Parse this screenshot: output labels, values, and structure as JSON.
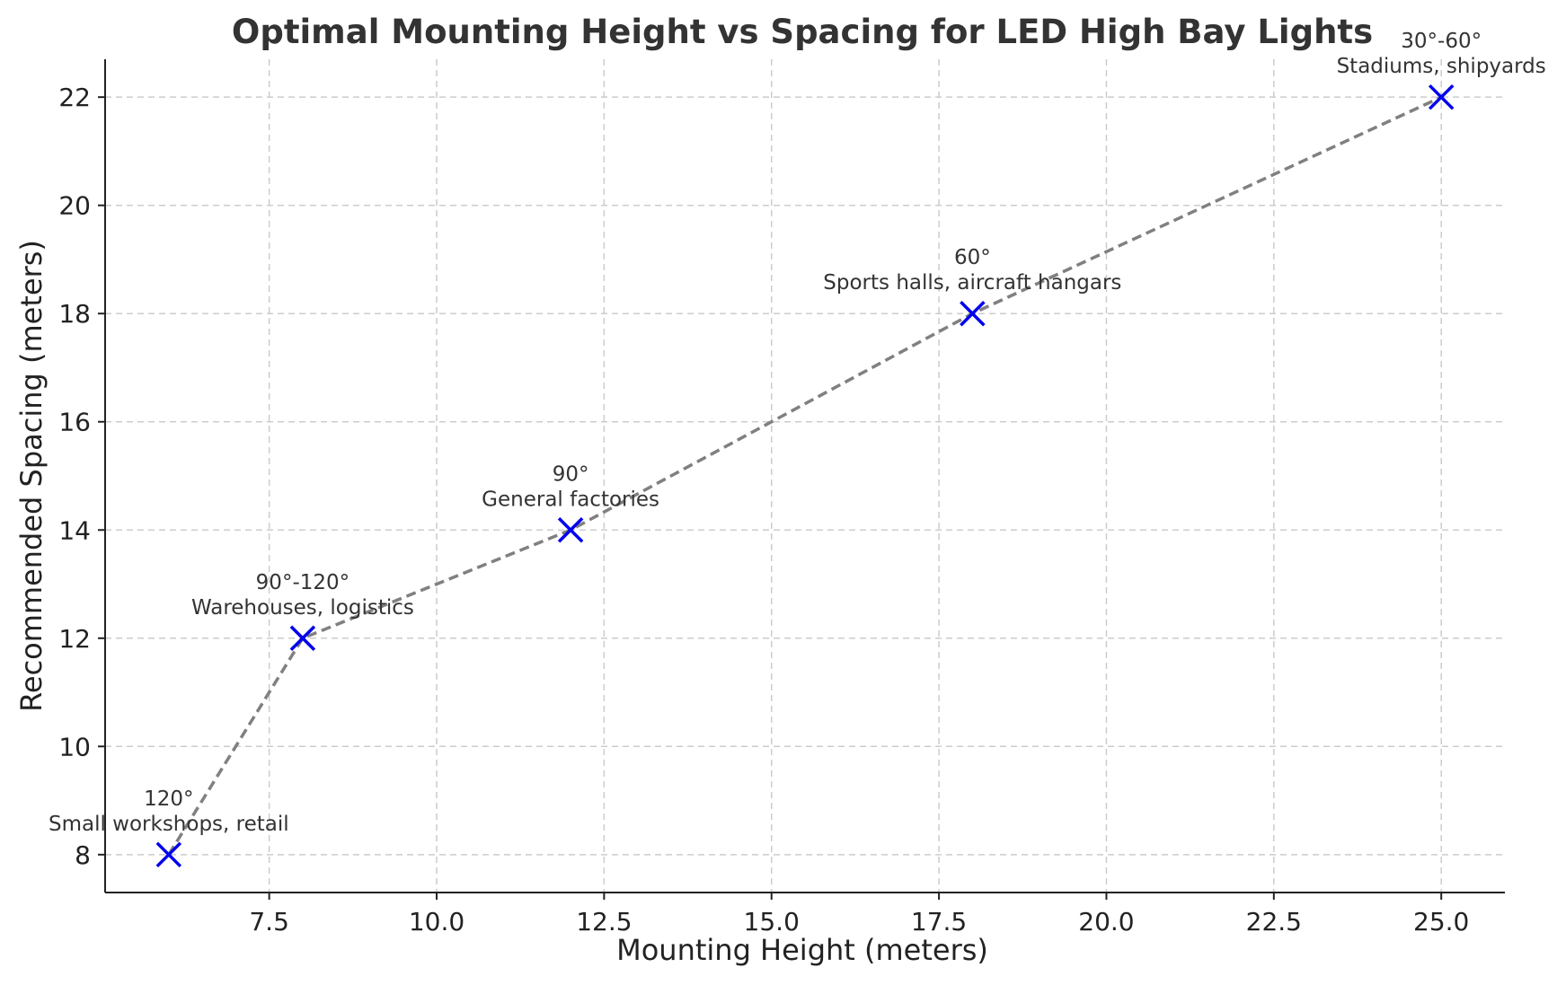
{
  "chart_data": {
    "type": "line",
    "title": "Optimal Mounting Height vs Spacing for LED High Bay Lights",
    "xlabel": "Mounting Height (meters)",
    "ylabel": "Recommended Spacing (meters)",
    "xlim": [
      5.05,
      25.95
    ],
    "ylim": [
      7.3,
      22.7
    ],
    "xticks": [
      7.5,
      10.0,
      12.5,
      15.0,
      17.5,
      20.0,
      22.5,
      25.0
    ],
    "xtick_labels": [
      "7.5",
      "10.0",
      "12.5",
      "15.0",
      "17.5",
      "20.0",
      "22.5",
      "25.0"
    ],
    "yticks": [
      8,
      10,
      12,
      14,
      16,
      18,
      20,
      22
    ],
    "ytick_labels": [
      "8",
      "10",
      "12",
      "14",
      "16",
      "18",
      "20",
      "22"
    ],
    "grid": true,
    "line_style": "dashed",
    "line_color": "#808080",
    "marker": "x",
    "marker_color": "#0000ee",
    "points": [
      {
        "x": 6,
        "y": 8,
        "angle": "120°",
        "application": "Small workshops, retail"
      },
      {
        "x": 8,
        "y": 12,
        "angle": "90°-120°",
        "application": "Warehouses, logistics"
      },
      {
        "x": 12,
        "y": 14,
        "angle": "90°",
        "application": "General factories"
      },
      {
        "x": 18,
        "y": 18,
        "angle": "60°",
        "application": "Sports halls, aircraft hangars"
      },
      {
        "x": 25,
        "y": 22,
        "angle": "30°-60°",
        "application": "Stadiums, shipyards"
      }
    ]
  }
}
